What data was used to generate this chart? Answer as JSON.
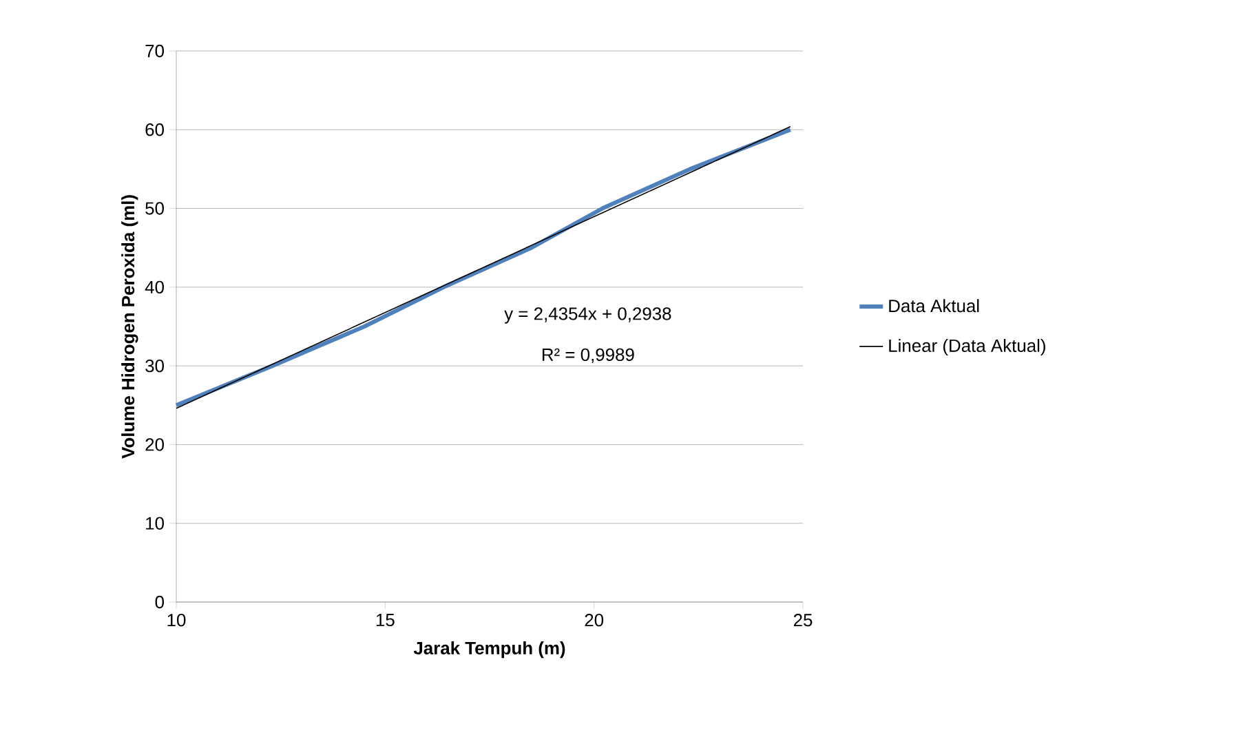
{
  "chart_data": {
    "type": "line",
    "xlabel": "Jarak Tempuh (m)",
    "ylabel": "Volume Hidrogen Peroxida (ml)",
    "xlim": [
      10,
      25
    ],
    "xticks": [
      10,
      15,
      20,
      25
    ],
    "ylim": [
      0,
      70
    ],
    "yticks": [
      0,
      10,
      20,
      30,
      40,
      50,
      60,
      70
    ],
    "grid": "y",
    "legend": "right",
    "marker": "none",
    "series": [
      {
        "name": "Data Aktual",
        "color": "#4f81bd",
        "x": [
          10,
          12.3,
          14.5,
          16.4,
          18.5,
          20.2,
          22.3,
          24.7
        ],
        "values": [
          25,
          30,
          35,
          40,
          45,
          50,
          55,
          60
        ]
      },
      {
        "name": "Linear (Data Aktual)",
        "color": "#000000",
        "x": [
          10,
          24.7
        ],
        "values": [
          24.6,
          60.4
        ]
      }
    ],
    "annotations": [
      "y = 2,4354x + 0,2938",
      "R² = 0,9989"
    ]
  }
}
